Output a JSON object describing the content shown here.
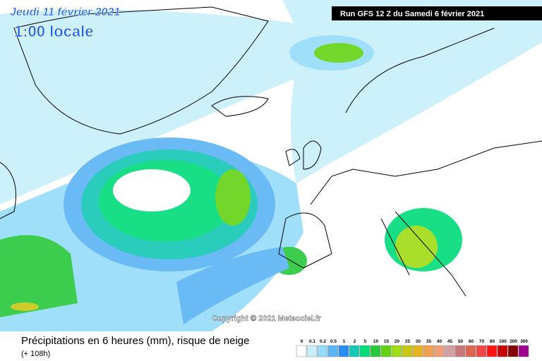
{
  "header": {
    "date": "Jeudi 11 février 2021",
    "time": "1:00 locale",
    "run": "Run GFS 12 Z du Samedi 6 février 2021"
  },
  "copyright": "Copyright © 2021 Meteociel.fr",
  "footer": {
    "title": "Précipitations en 6 heures (mm), risque de neige",
    "lead": "(+ 108h)"
  },
  "legend": [
    {
      "label": 0,
      "color": "#ffffff"
    },
    {
      "label": 0.1,
      "color": "#c8f0fa"
    },
    {
      "label": 0.2,
      "color": "#96dcfa"
    },
    {
      "label": 0.5,
      "color": "#5ab4f5"
    },
    {
      "label": 1,
      "color": "#288cf0"
    },
    {
      "label": 2,
      "color": "#14c8b4"
    },
    {
      "label": 5,
      "color": "#00dc78"
    },
    {
      "label": 10,
      "color": "#28c83c"
    },
    {
      "label": 15,
      "color": "#64d214"
    },
    {
      "label": 20,
      "color": "#a0dc14"
    },
    {
      "label": 25,
      "color": "#c8c814"
    },
    {
      "label": 30,
      "color": "#e6b41e"
    },
    {
      "label": 35,
      "color": "#f0a050"
    },
    {
      "label": 40,
      "color": "#f0a078"
    },
    {
      "label": 45,
      "color": "#d2a0a0"
    },
    {
      "label": 50,
      "color": "#c87878"
    },
    {
      "label": 60,
      "color": "#dc6450"
    },
    {
      "label": 70,
      "color": "#f04646"
    },
    {
      "label": 80,
      "color": "#ff1414"
    },
    {
      "label": 100,
      "color": "#c80000"
    },
    {
      "label": 200,
      "color": "#820000"
    },
    {
      "label": 300,
      "color": "#a0008c"
    }
  ]
}
